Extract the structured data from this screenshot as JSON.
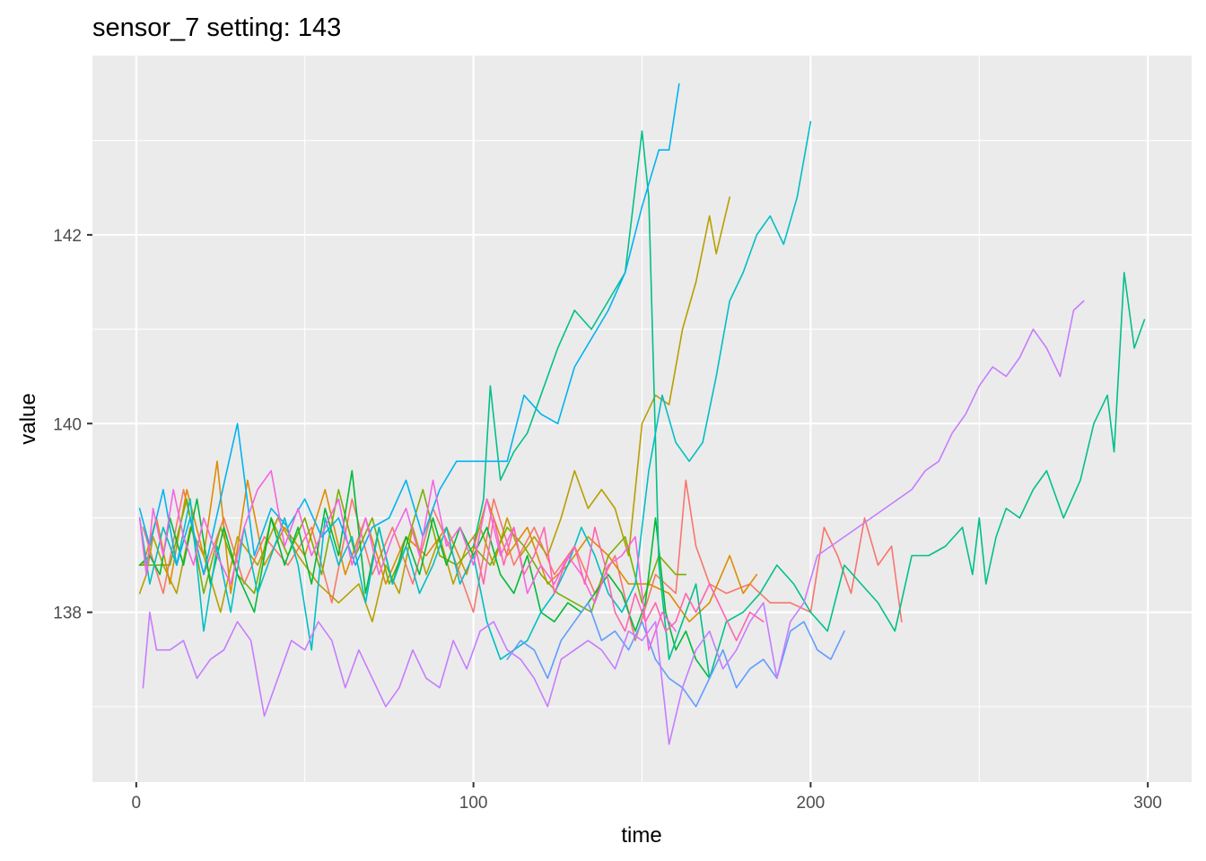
{
  "chart_data": {
    "type": "line",
    "title": "sensor_7 setting: 143",
    "xlabel": "time",
    "ylabel": "value",
    "xlim": [
      -13,
      313
    ],
    "ylim": [
      136.2,
      143.9
    ],
    "x_ticks": [
      0,
      100,
      200,
      300
    ],
    "x_tick_labels": [
      "0",
      "100",
      "200",
      "300"
    ],
    "y_ticks": [
      138,
      140,
      142
    ],
    "y_tick_labels": [
      "138",
      "140",
      "142"
    ],
    "x_minor_ticks": [
      50,
      150,
      250
    ],
    "y_minor_ticks": [
      137,
      139,
      141,
      143
    ],
    "grid": true,
    "legend": "none",
    "series": [
      {
        "color": "#F8766D",
        "x": [
          2,
          8,
          14,
          20,
          26,
          32,
          38,
          45,
          52,
          58,
          64,
          70,
          76,
          82,
          88,
          94,
          100,
          106,
          112,
          118,
          124,
          130,
          136,
          142,
          148,
          154,
          160,
          163,
          166,
          170,
          175,
          182,
          188,
          194,
          200,
          204,
          208,
          212,
          216,
          220,
          224,
          227
        ],
        "y": [
          138.9,
          138.2,
          139.3,
          138.4,
          139.0,
          138.3,
          138.8,
          138.5,
          138.9,
          138.1,
          139.2,
          138.4,
          138.9,
          138.3,
          139.1,
          138.6,
          138.0,
          139.2,
          138.5,
          138.9,
          138.4,
          138.7,
          138.2,
          138.6,
          137.7,
          138.4,
          138.2,
          139.4,
          138.7,
          138.3,
          138.2,
          138.3,
          138.1,
          138.1,
          138.0,
          138.9,
          138.6,
          138.2,
          139.0,
          138.5,
          138.7,
          137.9
        ]
      },
      {
        "color": "#DE8C00",
        "x": [
          2,
          6,
          10,
          15,
          20,
          24,
          28,
          33,
          38,
          44,
          50,
          56,
          62,
          68,
          74,
          80,
          86,
          92,
          98,
          104,
          110,
          116,
          122,
          128,
          134,
          140,
          146,
          152,
          158,
          164,
          170,
          176,
          180,
          184
        ],
        "y": [
          138.5,
          139.0,
          138.3,
          139.3,
          138.6,
          139.6,
          138.2,
          139.4,
          138.5,
          138.9,
          138.6,
          139.3,
          138.4,
          139.0,
          138.3,
          138.8,
          138.6,
          138.9,
          138.4,
          139.2,
          138.6,
          138.9,
          138.3,
          138.5,
          138.8,
          138.6,
          138.3,
          138.3,
          138.2,
          137.9,
          138.1,
          138.6,
          138.2,
          138.4
        ]
      },
      {
        "color": "#B79F00",
        "x": [
          1,
          3,
          5,
          8,
          12,
          16,
          20,
          25,
          30,
          36,
          42,
          48,
          54,
          60,
          66,
          70,
          74,
          78,
          82,
          86,
          90,
          94,
          98,
          102,
          106,
          110,
          114,
          118,
          122,
          126,
          130,
          134,
          138,
          142,
          146,
          150,
          154,
          158,
          162,
          166,
          170,
          172,
          176
        ],
        "y": [
          138.2,
          138.4,
          138.8,
          138.5,
          138.2,
          138.9,
          138.6,
          138.0,
          138.8,
          138.5,
          139.0,
          138.6,
          138.3,
          138.1,
          138.3,
          137.9,
          138.5,
          138.2,
          138.9,
          138.4,
          138.8,
          138.3,
          138.7,
          138.9,
          138.5,
          139.0,
          138.6,
          138.8,
          138.6,
          139.0,
          139.5,
          139.1,
          139.3,
          139.1,
          138.6,
          140.0,
          140.3,
          140.2,
          141.0,
          141.5,
          142.2,
          141.8,
          142.4
        ]
      },
      {
        "color": "#7CAE00",
        "x": [
          1,
          5,
          10,
          15,
          20,
          25,
          30,
          35,
          40,
          45,
          50,
          55,
          60,
          65,
          70,
          75,
          80,
          85,
          90,
          95,
          100,
          105,
          110,
          115,
          120,
          125,
          130,
          135,
          140,
          145,
          150,
          155,
          160,
          163
        ],
        "y": [
          138.5,
          138.5,
          138.5,
          139.2,
          138.2,
          138.9,
          138.4,
          138.2,
          139.0,
          138.6,
          139.0,
          138.4,
          139.3,
          138.6,
          139.0,
          138.3,
          138.7,
          139.3,
          138.6,
          138.5,
          138.7,
          138.5,
          138.9,
          138.7,
          138.4,
          138.2,
          138.1,
          138.0,
          138.6,
          138.8,
          138.1,
          138.6,
          138.4,
          138.4
        ]
      },
      {
        "color": "#00BA38",
        "x": [
          1,
          4,
          7,
          10,
          14,
          18,
          22,
          26,
          30,
          35,
          40,
          44,
          48,
          52,
          56,
          60,
          64,
          68,
          72,
          76,
          80,
          84,
          88,
          92,
          96,
          100,
          104,
          108,
          112,
          116,
          120,
          124,
          128,
          132,
          136,
          140,
          144,
          148,
          151,
          154,
          157,
          160,
          163,
          166,
          170
        ],
        "y": [
          138.5,
          138.6,
          138.4,
          139.0,
          138.5,
          139.2,
          138.3,
          138.9,
          138.4,
          138.0,
          139.0,
          138.5,
          138.9,
          138.3,
          139.1,
          138.6,
          139.5,
          138.2,
          138.9,
          138.3,
          138.8,
          138.4,
          139.0,
          138.5,
          138.9,
          138.6,
          138.9,
          138.4,
          138.2,
          138.6,
          138.0,
          137.9,
          138.1,
          138.0,
          138.2,
          138.4,
          138.2,
          137.8,
          138.1,
          139.0,
          138.0,
          137.6,
          137.8,
          137.5,
          137.3
        ]
      },
      {
        "color": "#00C08B",
        "x": [
          100,
          103,
          105,
          108,
          112,
          116,
          120,
          125,
          130,
          135,
          140,
          145,
          150,
          152,
          155,
          158,
          162,
          166,
          170,
          175,
          180,
          185,
          190,
          195,
          200,
          205,
          210,
          215,
          220,
          225,
          230,
          235,
          240,
          245,
          248,
          250,
          252,
          255,
          258,
          262,
          266,
          270,
          275,
          280,
          284,
          288,
          290,
          293,
          296,
          299
        ],
        "y": [
          138.7,
          139.2,
          140.4,
          139.4,
          139.7,
          139.9,
          140.3,
          140.8,
          141.2,
          141.0,
          141.3,
          141.6,
          143.1,
          142.4,
          138.5,
          137.5,
          137.9,
          138.3,
          137.3,
          137.9,
          138.0,
          138.2,
          138.5,
          138.3,
          138.0,
          137.8,
          138.5,
          138.3,
          138.1,
          137.8,
          138.6,
          138.6,
          138.7,
          138.9,
          138.4,
          139.0,
          138.3,
          138.8,
          139.1,
          139.0,
          139.3,
          139.5,
          139.0,
          139.4,
          140.0,
          140.3,
          139.7,
          141.6,
          140.8,
          141.1
        ]
      },
      {
        "color": "#00BFC4",
        "x": [
          1,
          4,
          8,
          12,
          16,
          20,
          24,
          28,
          32,
          36,
          40,
          44,
          48,
          52,
          56,
          60,
          64,
          68,
          72,
          76,
          80,
          84,
          88,
          92,
          96,
          100,
          104,
          108,
          112,
          116,
          120,
          124,
          128,
          132,
          136,
          140,
          144,
          148,
          152,
          156,
          160,
          164,
          168,
          172,
          176,
          180,
          184,
          188,
          192,
          196,
          200
        ],
        "y": [
          139.0,
          138.3,
          138.9,
          138.5,
          139.2,
          137.8,
          138.7,
          138.0,
          138.9,
          138.2,
          138.6,
          139.0,
          138.5,
          137.6,
          139.0,
          138.5,
          138.8,
          138.1,
          138.9,
          138.3,
          138.7,
          138.2,
          138.5,
          138.9,
          138.3,
          138.6,
          137.9,
          137.5,
          137.6,
          137.7,
          138.0,
          138.2,
          138.5,
          138.9,
          138.6,
          138.2,
          138.0,
          138.3,
          139.5,
          140.3,
          139.8,
          139.6,
          139.8,
          140.5,
          141.3,
          141.6,
          142.0,
          142.2,
          141.9,
          142.4,
          143.2
        ]
      },
      {
        "color": "#00B4F0",
        "x": [
          1,
          4,
          8,
          12,
          16,
          20,
          25,
          30,
          35,
          40,
          45,
          50,
          55,
          60,
          65,
          70,
          75,
          80,
          85,
          90,
          95,
          100,
          105,
          110,
          115,
          120,
          125,
          130,
          135,
          140,
          145,
          150,
          155,
          158,
          161
        ],
        "y": [
          139.1,
          138.7,
          139.3,
          138.5,
          139.0,
          138.4,
          139.2,
          140.0,
          138.6,
          139.1,
          138.9,
          139.2,
          138.8,
          139.0,
          138.5,
          138.9,
          139.0,
          139.4,
          138.8,
          139.3,
          139.6,
          139.6,
          139.6,
          139.6,
          140.3,
          140.1,
          140.0,
          140.6,
          140.9,
          141.2,
          141.6,
          142.3,
          142.9,
          142.9,
          143.6
        ]
      },
      {
        "color": "#619CFF",
        "x": [
          110,
          114,
          118,
          122,
          126,
          130,
          134,
          138,
          142,
          146,
          150,
          154,
          158,
          162,
          166,
          170,
          174,
          178,
          182,
          186,
          190,
          194,
          198,
          202,
          206,
          210
        ],
        "y": [
          137.5,
          137.7,
          137.6,
          137.3,
          137.7,
          137.9,
          138.1,
          137.7,
          137.8,
          137.6,
          137.9,
          137.5,
          137.3,
          137.2,
          137.0,
          137.3,
          137.6,
          137.2,
          137.4,
          137.5,
          137.3,
          137.8,
          137.9,
          137.6,
          137.5,
          137.8
        ]
      },
      {
        "color": "#C77CFF",
        "x": [
          2,
          4,
          6,
          10,
          14,
          18,
          22,
          26,
          30,
          34,
          38,
          42,
          46,
          50,
          54,
          58,
          62,
          66,
          70,
          74,
          78,
          82,
          86,
          90,
          94,
          98,
          102,
          106,
          110,
          114,
          118,
          122,
          126,
          130,
          134,
          138,
          142,
          146,
          150,
          154,
          158,
          162,
          166,
          170,
          174,
          178,
          182,
          186,
          190,
          194,
          198,
          202,
          206,
          210,
          214,
          218,
          222,
          226,
          230,
          234,
          238,
          242,
          246,
          250,
          254,
          258,
          262,
          266,
          270,
          274,
          278,
          281
        ],
        "y": [
          137.2,
          138.0,
          137.6,
          137.6,
          137.7,
          137.3,
          137.5,
          137.6,
          137.9,
          137.7,
          136.9,
          137.3,
          137.7,
          137.6,
          137.9,
          137.7,
          137.2,
          137.6,
          137.3,
          137.0,
          137.2,
          137.6,
          137.3,
          137.2,
          137.7,
          137.4,
          137.8,
          137.9,
          137.6,
          137.5,
          137.3,
          137.0,
          137.5,
          137.6,
          137.7,
          137.6,
          137.4,
          137.8,
          137.7,
          137.9,
          136.6,
          137.2,
          137.6,
          137.8,
          137.4,
          137.6,
          137.9,
          138.1,
          137.3,
          137.9,
          138.1,
          138.6,
          138.7,
          138.8,
          138.9,
          139.0,
          139.1,
          139.2,
          139.3,
          139.5,
          139.6,
          139.9,
          140.1,
          140.4,
          140.6,
          140.5,
          140.7,
          141.0,
          140.8,
          140.5,
          141.2,
          141.3
        ]
      },
      {
        "color": "#F564E3",
        "x": [
          1,
          3,
          5,
          8,
          11,
          14,
          17,
          20,
          24,
          28,
          32,
          36,
          40,
          44,
          48,
          52,
          56,
          60,
          64,
          68,
          72,
          76,
          80,
          84,
          88,
          92,
          96,
          100,
          104,
          108,
          112,
          116,
          120,
          124,
          128,
          132,
          136,
          140,
          144,
          148,
          152,
          156,
          160
        ],
        "y": [
          139.0,
          138.4,
          139.1,
          138.6,
          139.3,
          138.8,
          138.5,
          139.0,
          138.6,
          138.3,
          138.9,
          139.3,
          139.5,
          138.7,
          139.1,
          138.6,
          138.9,
          139.2,
          138.5,
          139.0,
          138.4,
          138.8,
          139.1,
          138.6,
          139.4,
          138.7,
          138.9,
          138.5,
          139.2,
          138.6,
          138.9,
          138.2,
          138.5,
          138.3,
          138.6,
          138.4,
          138.1,
          138.5,
          138.6,
          138.8,
          137.6,
          138.0,
          137.8
        ]
      },
      {
        "color": "#FF64B0",
        "x": [
          100,
          103,
          106,
          109,
          112,
          115,
          118,
          121,
          124,
          127,
          130,
          133,
          136,
          139,
          142,
          145,
          148,
          151,
          154,
          157,
          160,
          163,
          166,
          170,
          174,
          178,
          182,
          186
        ],
        "y": [
          138.8,
          138.3,
          139.0,
          138.5,
          138.9,
          138.4,
          138.6,
          138.9,
          138.2,
          138.5,
          138.7,
          138.3,
          138.9,
          138.5,
          138.0,
          137.8,
          138.2,
          137.9,
          138.1,
          137.8,
          137.9,
          138.2,
          138.0,
          138.3,
          138.0,
          137.7,
          138.0,
          137.9
        ]
      }
    ]
  }
}
